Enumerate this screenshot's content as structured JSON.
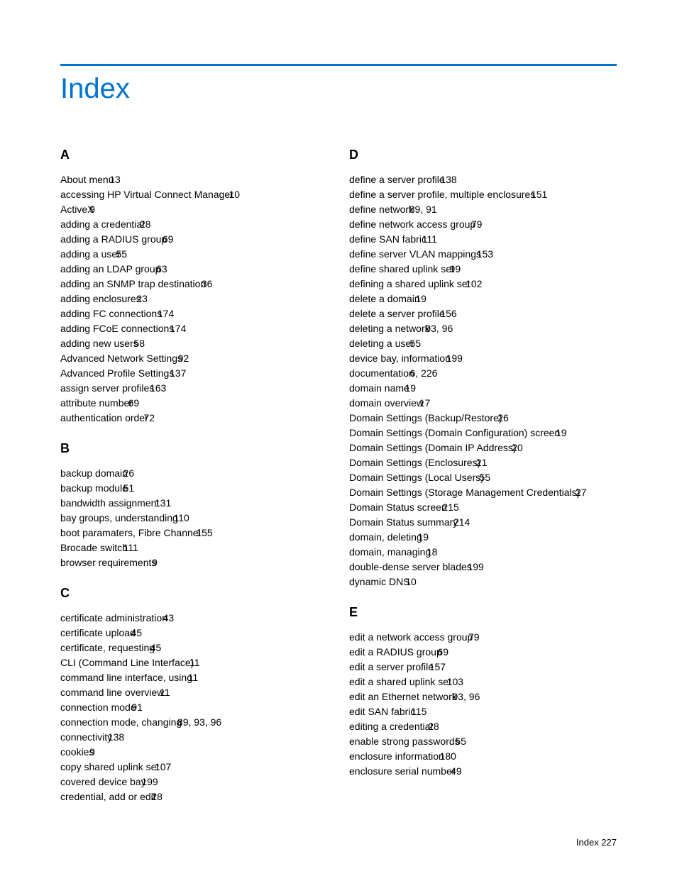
{
  "title": "Index",
  "rule_color": "#0073cf",
  "title_color": "#0073cf",
  "footer": "Index   227",
  "columns": [
    {
      "sections": [
        {
          "letter": "A",
          "entries": [
            {
              "text": "About menu",
              "pages": "13"
            },
            {
              "text": "accessing HP Virtual Connect Manager",
              "pages": "10"
            },
            {
              "text": "ActiveX",
              "pages": "9"
            },
            {
              "text": "adding a credential",
              "pages": "28"
            },
            {
              "text": "adding a RADIUS group",
              "pages": "69"
            },
            {
              "text": "adding a user",
              "pages": "55"
            },
            {
              "text": "adding an LDAP group",
              "pages": "63"
            },
            {
              "text": "adding an SNMP trap destination",
              "pages": "36"
            },
            {
              "text": "adding enclosures",
              "pages": "23"
            },
            {
              "text": "adding FC connections",
              "pages": "174"
            },
            {
              "text": "adding FCoE connections",
              "pages": "174"
            },
            {
              "text": "adding new users",
              "pages": "58"
            },
            {
              "text": "Advanced Network Settings",
              "pages": "92"
            },
            {
              "text": "Advanced Profile Settings",
              "pages": "137"
            },
            {
              "text": "assign server profiles",
              "pages": "163"
            },
            {
              "text": "attribute number",
              "pages": "69"
            },
            {
              "text": "authentication order",
              "pages": "72"
            }
          ]
        },
        {
          "letter": "B",
          "entries": [
            {
              "text": "backup domain",
              "pages": "26"
            },
            {
              "text": "backup module",
              "pages": "51"
            },
            {
              "text": "bandwidth assignment",
              "pages": "131"
            },
            {
              "text": "bay groups, understanding",
              "pages": "110"
            },
            {
              "text": "boot paramaters, Fibre Channel",
              "pages": "155"
            },
            {
              "text": "Brocade switch",
              "pages": "111"
            },
            {
              "text": "browser requirements",
              "pages": "9"
            }
          ]
        },
        {
          "letter": "C",
          "entries": [
            {
              "text": "certificate administration",
              "pages": "43"
            },
            {
              "text": "certificate upload",
              "pages": "45"
            },
            {
              "text": "certificate, requesting",
              "pages": "45"
            },
            {
              "text": "CLI (Command Line Interface)",
              "pages": "11"
            },
            {
              "text": "command line interface, using",
              "pages": "11"
            },
            {
              "text": "command line overview",
              "pages": "11"
            },
            {
              "text": "connection mode",
              "pages": "91"
            },
            {
              "text": "connection mode, changing",
              "pages": "89, 93, 96"
            },
            {
              "text": "connectivity",
              "pages": "138"
            },
            {
              "text": "cookies",
              "pages": "9"
            },
            {
              "text": "copy shared uplink set",
              "pages": "107"
            },
            {
              "text": "covered device bay",
              "pages": "199"
            },
            {
              "text": "credential, add or edit",
              "pages": "28"
            }
          ]
        }
      ]
    },
    {
      "sections": [
        {
          "letter": "D",
          "entries": [
            {
              "text": "define a server profile",
              "pages": "138"
            },
            {
              "text": "define a server profile, multiple enclosures",
              "pages": "151"
            },
            {
              "text": "define network",
              "pages": "89, 91"
            },
            {
              "text": "define network access group",
              "pages": "79"
            },
            {
              "text": "define SAN fabric",
              "pages": "111"
            },
            {
              "text": "define server VLAN mappings",
              "pages": "153"
            },
            {
              "text": "define shared uplink set",
              "pages": "99"
            },
            {
              "text": "defining a shared uplink set",
              "pages": "102"
            },
            {
              "text": "delete a domain",
              "pages": "19"
            },
            {
              "text": "delete a server profile",
              "pages": "156"
            },
            {
              "text": "deleting a network",
              "pages": "93, 96"
            },
            {
              "text": "deleting a user",
              "pages": "55"
            },
            {
              "text": "device bay, information",
              "pages": "199"
            },
            {
              "text": "documentation",
              "pages": "6, 226"
            },
            {
              "text": "domain name",
              "pages": "19"
            },
            {
              "text": "domain overview",
              "pages": "17"
            },
            {
              "text": "Domain Settings (Backup/Restore)",
              "pages": "26"
            },
            {
              "text": "Domain Settings (Domain Configuration) screen",
              "pages": "19"
            },
            {
              "text": "Domain Settings (Domain IP Address)",
              "pages": "20"
            },
            {
              "text": "Domain Settings (Enclosures)",
              "pages": "21"
            },
            {
              "text": "Domain Settings (Local Users)",
              "pages": "55"
            },
            {
              "text": "Domain Settings (Storage Management Credentials)",
              "pages": "27"
            },
            {
              "text": "Domain Status screen",
              "pages": "215"
            },
            {
              "text": "Domain Status summary",
              "pages": "214"
            },
            {
              "text": "domain, deleting",
              "pages": "19"
            },
            {
              "text": "domain, managing",
              "pages": "18"
            },
            {
              "text": "double-dense server blades",
              "pages": "199"
            },
            {
              "text": "dynamic DNS",
              "pages": "10"
            }
          ]
        },
        {
          "letter": "E",
          "entries": [
            {
              "text": "edit a network access group",
              "pages": "79"
            },
            {
              "text": "edit a RADIUS group",
              "pages": "69"
            },
            {
              "text": "edit a server profile",
              "pages": "157"
            },
            {
              "text": "edit a shared uplink set",
              "pages": "103"
            },
            {
              "text": "edit an Ethernet network",
              "pages": "93, 96"
            },
            {
              "text": "edit SAN fabric",
              "pages": "115"
            },
            {
              "text": "editing a credential",
              "pages": "28"
            },
            {
              "text": "enable strong passwords",
              "pages": "55"
            },
            {
              "text": "enclosure information",
              "pages": "180"
            },
            {
              "text": "enclosure serial number",
              "pages": "49"
            }
          ]
        }
      ]
    }
  ]
}
